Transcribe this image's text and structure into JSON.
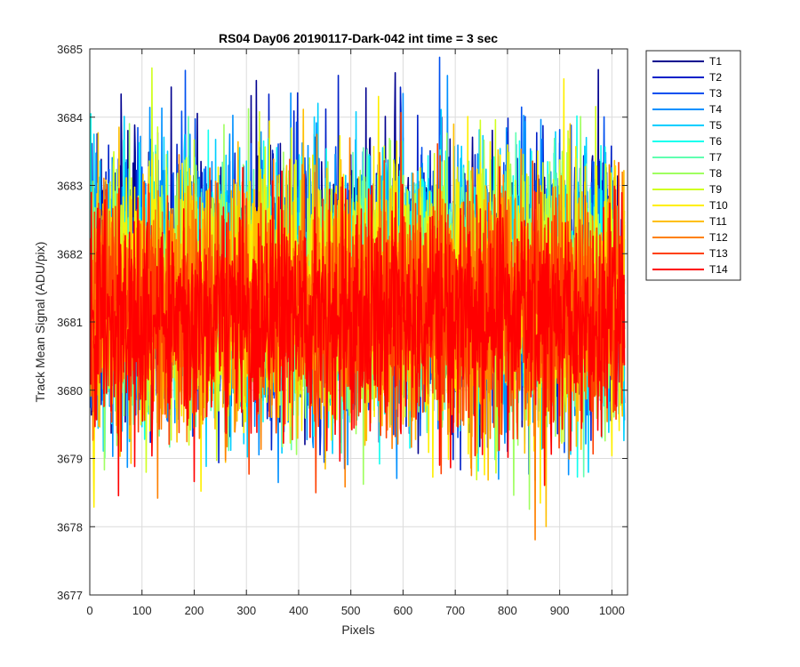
{
  "chart_data": {
    "type": "line",
    "title": "RS04 Day06 20190117-Dark-042 int time = 3 sec",
    "xlabel": "Pixels",
    "ylabel": "Track Mean Signal (ADU/pix)",
    "xlim": [
      0,
      1030
    ],
    "ylim": [
      3677,
      3685
    ],
    "xticks": [
      0,
      100,
      200,
      300,
      400,
      500,
      600,
      700,
      800,
      900,
      1000
    ],
    "yticks": [
      3677,
      3678,
      3679,
      3680,
      3681,
      3682,
      3683,
      3684,
      3685
    ],
    "grid": true,
    "legend_position": "outside-top-right",
    "x_range": [
      1,
      1024
    ],
    "series": [
      {
        "name": "T1",
        "color": "#00008f",
        "mean": 3681.65,
        "sd": 0.95
      },
      {
        "name": "T2",
        "color": "#0020c8",
        "mean": 3681.6,
        "sd": 0.95
      },
      {
        "name": "T3",
        "color": "#0050f0",
        "mean": 3681.55,
        "sd": 0.95
      },
      {
        "name": "T4",
        "color": "#0090ff",
        "mean": 3681.5,
        "sd": 0.95
      },
      {
        "name": "T5",
        "color": "#00cfff",
        "mean": 3681.5,
        "sd": 0.95
      },
      {
        "name": "T6",
        "color": "#10ffef",
        "mean": 3681.45,
        "sd": 0.9
      },
      {
        "name": "T7",
        "color": "#60ffb0",
        "mean": 3681.45,
        "sd": 0.9
      },
      {
        "name": "T8",
        "color": "#9fff60",
        "mean": 3681.4,
        "sd": 0.9
      },
      {
        "name": "T9",
        "color": "#d0ff20",
        "mean": 3681.4,
        "sd": 0.9
      },
      {
        "name": "T10",
        "color": "#ffef00",
        "mean": 3681.35,
        "sd": 0.9
      },
      {
        "name": "T11",
        "color": "#ffbf00",
        "mean": 3681.3,
        "sd": 0.9
      },
      {
        "name": "T12",
        "color": "#ff8000",
        "mean": 3681.2,
        "sd": 0.9
      },
      {
        "name": "T13",
        "color": "#ff4000",
        "mean": 3681.15,
        "sd": 0.85
      },
      {
        "name": "T14",
        "color": "#ff0000",
        "mean": 3681.1,
        "sd": 0.8
      }
    ]
  }
}
